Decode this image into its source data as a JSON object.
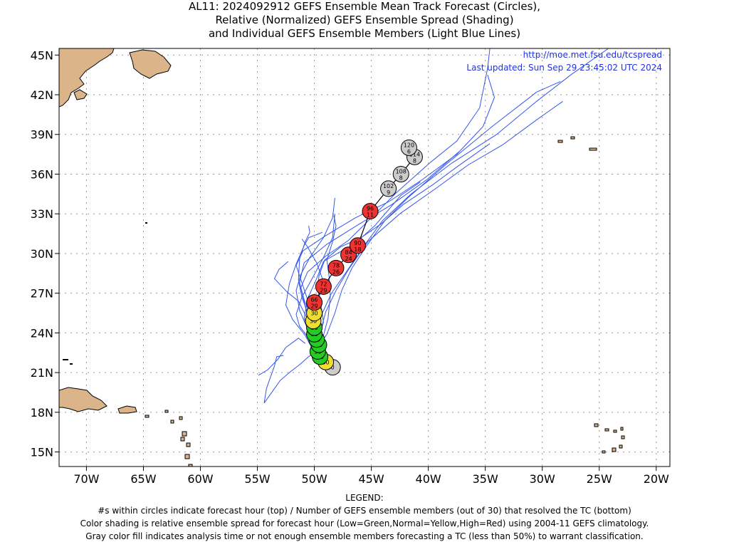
{
  "title": {
    "line1": "AL11: 2024092912 GEFS Ensemble Mean Track Forecast (Circles),",
    "line2": "Relative (Normalized) GEFS Ensemble Spread (Shading)",
    "line3": "and Individual GEFS Ensemble Members (Light Blue Lines)"
  },
  "credits": {
    "url": "http://moe.met.fsu.edu/tcspread",
    "updated": "Last updated: Sun Sep 29 23:45:02 UTC 2024"
  },
  "axes": {
    "lon_labels": [
      "70W",
      "65W",
      "60W",
      "55W",
      "50W",
      "45W",
      "40W",
      "35W",
      "30W",
      "25W",
      "20W"
    ],
    "lon_values": [
      -70,
      -65,
      -60,
      -55,
      -50,
      -45,
      -40,
      -35,
      -30,
      -25,
      -20
    ],
    "lat_labels": [
      "45N",
      "42N",
      "39N",
      "36N",
      "33N",
      "30N",
      "27N",
      "24N",
      "21N",
      "18N",
      "15N"
    ],
    "lat_values": [
      45,
      42,
      39,
      36,
      33,
      30,
      27,
      24,
      21,
      18,
      15
    ],
    "lon_range": [
      -72.4,
      -18.8
    ],
    "lat_range": [
      13.9,
      45.5
    ]
  },
  "colors": {
    "land": "#dbb589",
    "member_tracks": "#3355ee",
    "mean_track_line": "#000000",
    "spread_low": "#22cc22",
    "spread_normal": "#eedd33",
    "spread_high": "#ee3333",
    "spread_gray": "#cccccc",
    "grid": "#999999",
    "credits": "#2233dd"
  },
  "mean_track": [
    {
      "hour": "0",
      "members": "",
      "lon": -48.4,
      "lat": 21.4,
      "spread": "gray"
    },
    {
      "hour": "",
      "members": "30",
      "lon": -49.0,
      "lat": 21.8,
      "spread": "normal"
    },
    {
      "hour": "",
      "members": "30",
      "lon": -49.5,
      "lat": 22.2,
      "spread": "low"
    },
    {
      "hour": "",
      "members": "30",
      "lon": -49.7,
      "lat": 22.6,
      "spread": "low"
    },
    {
      "hour": "",
      "members": "30",
      "lon": -49.6,
      "lat": 23.1,
      "spread": "low"
    },
    {
      "hour": "",
      "members": "30",
      "lon": -49.8,
      "lat": 23.5,
      "spread": "low"
    },
    {
      "hour": "30",
      "members": "",
      "lon": -50.0,
      "lat": 23.9,
      "spread": "low"
    },
    {
      "hour": "30",
      "members": "",
      "lon": -50.0,
      "lat": 24.4,
      "spread": "low"
    },
    {
      "hour": "",
      "members": "30",
      "lon": -50.1,
      "lat": 24.9,
      "spread": "normal"
    },
    {
      "hour": "30",
      "members": "",
      "lon": -50.0,
      "lat": 25.5,
      "spread": "normal"
    },
    {
      "hour": "66",
      "members": "29",
      "lon": -50.0,
      "lat": 26.3,
      "spread": "high"
    },
    {
      "hour": "72",
      "members": "29",
      "lon": -49.2,
      "lat": 27.5,
      "spread": "high"
    },
    {
      "hour": "78",
      "members": "26",
      "lon": -48.1,
      "lat": 28.9,
      "spread": "high"
    },
    {
      "hour": "84",
      "members": "24",
      "lon": -47.0,
      "lat": 29.9,
      "spread": "high"
    },
    {
      "hour": "90",
      "members": "18",
      "lon": -46.2,
      "lat": 30.6,
      "spread": "high"
    },
    {
      "hour": "96",
      "members": "11",
      "lon": -45.1,
      "lat": 33.2,
      "spread": "high"
    },
    {
      "hour": "102",
      "members": "9",
      "lon": -43.5,
      "lat": 34.9,
      "spread": "gray"
    },
    {
      "hour": "108",
      "members": "8",
      "lon": -42.4,
      "lat": 36.0,
      "spread": "gray"
    },
    {
      "hour": "114",
      "members": "8",
      "lon": -41.2,
      "lat": 37.3,
      "spread": "gray"
    },
    {
      "hour": "120",
      "members": "6",
      "lon": -41.7,
      "lat": 38.0,
      "spread": "gray"
    }
  ],
  "legend": {
    "heading": "LEGEND:",
    "line1": "#s within circles indicate forecast hour (top) / Number of GEFS ensemble members (out of 30) that resolved the TC (bottom)",
    "line2": "Color shading is relative ensemble spread for forecast hour (Low=Green,Normal=Yellow,High=Red) using 2004-11 GEFS climatology.",
    "line3": "Gray color fill indicates analysis time or not enough ensemble members forecasting a TC (less than 50%) to warrant classification."
  }
}
